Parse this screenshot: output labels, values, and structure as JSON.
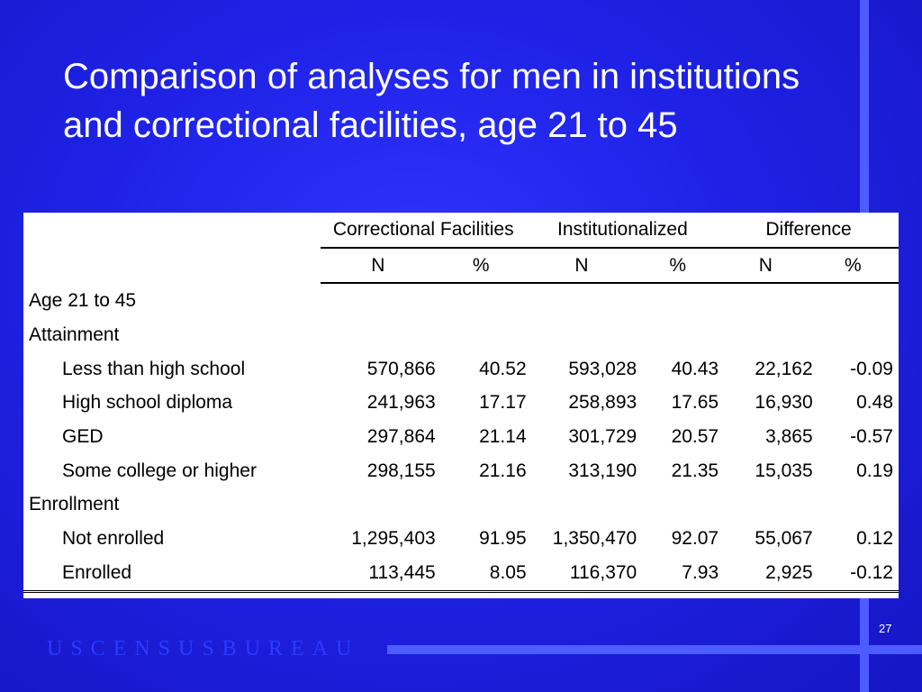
{
  "slide": {
    "title": "Comparison of analyses for men in institutions and correctional facilities, age 21 to 45",
    "footer_logo": "USCENSUSBUREAU",
    "page_number": "27",
    "background_color": "#1a1ad6"
  },
  "table": {
    "group_headers": [
      "Correctional Facilities",
      "Institutionalized",
      "Difference"
    ],
    "sub_headers": [
      "N",
      "%",
      "N",
      "%",
      "N",
      "%"
    ],
    "rows": [
      {
        "label": "Age 21 to 45",
        "indent": false,
        "cells": [
          "",
          "",
          "",
          "",
          "",
          ""
        ]
      },
      {
        "label": "Attainment",
        "indent": false,
        "cells": [
          "",
          "",
          "",
          "",
          "",
          ""
        ]
      },
      {
        "label": "Less than high school",
        "indent": true,
        "cells": [
          "570,866",
          "40.52",
          "593,028",
          "40.43",
          "22,162",
          "-0.09"
        ]
      },
      {
        "label": "High school diploma",
        "indent": true,
        "cells": [
          "241,963",
          "17.17",
          "258,893",
          "17.65",
          "16,930",
          "0.48"
        ]
      },
      {
        "label": "GED",
        "indent": true,
        "cells": [
          "297,864",
          "21.14",
          "301,729",
          "20.57",
          "3,865",
          "-0.57"
        ]
      },
      {
        "label": "Some college or higher",
        "indent": true,
        "cells": [
          "298,155",
          "21.16",
          "313,190",
          "21.35",
          "15,035",
          "0.19"
        ]
      },
      {
        "label": "Enrollment",
        "indent": false,
        "cells": [
          "",
          "",
          "",
          "",
          "",
          ""
        ]
      },
      {
        "label": "Not enrolled",
        "indent": true,
        "cells": [
          "1,295,403",
          "91.95",
          "1,350,470",
          "92.07",
          "55,067",
          "0.12"
        ]
      },
      {
        "label": "Enrolled",
        "indent": true,
        "cells": [
          "113,445",
          "8.05",
          "116,370",
          "7.93",
          "2,925",
          "-0.12"
        ]
      }
    ]
  }
}
